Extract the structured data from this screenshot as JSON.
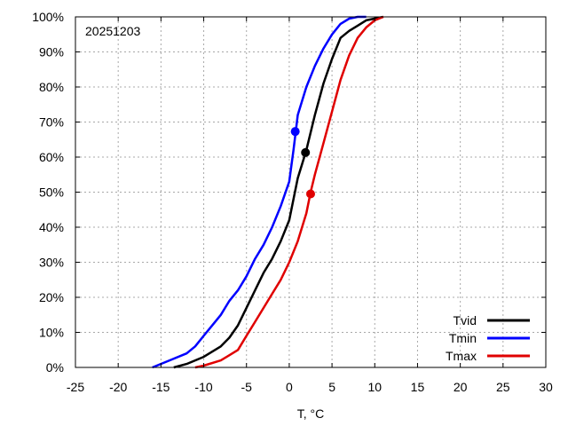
{
  "chart_data": {
    "type": "line",
    "title": "",
    "annotation": "20251203",
    "xlabel": "T, °C",
    "ylabel": "",
    "xlim": [
      -25,
      30
    ],
    "ylim": [
      0,
      100
    ],
    "x_ticks": [
      -25,
      -20,
      -15,
      -10,
      -5,
      0,
      5,
      10,
      15,
      20,
      25,
      30
    ],
    "x_tick_labels": [
      "-25",
      "-20",
      "-15",
      "-10",
      "-5",
      "0",
      "5",
      "10",
      "15",
      "20",
      "25",
      "30"
    ],
    "y_ticks": [
      0,
      10,
      20,
      30,
      40,
      50,
      60,
      70,
      80,
      90,
      100
    ],
    "y_tick_labels": [
      "0%",
      "10%",
      "20%",
      "30%",
      "40%",
      "50%",
      "60%",
      "70%",
      "80%",
      "90%",
      "100%"
    ],
    "grid": true,
    "legend_position": "bottom-right",
    "series": [
      {
        "name": "Tvid",
        "color": "#000000",
        "x": [
          -13.5,
          -12.0,
          -10.0,
          -8.0,
          -7.0,
          -6.0,
          -5.0,
          -4.0,
          -3.0,
          -2.0,
          -1.0,
          0.0,
          0.5,
          1.0,
          1.5,
          2.0,
          3.0,
          4.0,
          5.0,
          6.0,
          7.0,
          8.0,
          9.0,
          11.0
        ],
        "y": [
          0,
          1,
          3,
          6,
          8.5,
          12,
          17,
          22,
          27,
          31,
          36,
          42,
          48,
          54,
          58,
          62,
          72,
          81,
          88,
          94,
          96,
          97.5,
          99,
          100
        ],
        "marker": {
          "x": 1.9,
          "y": 61.3
        }
      },
      {
        "name": "Tmin",
        "color": "#0000ff",
        "x": [
          -16.0,
          -14.0,
          -12.0,
          -11.0,
          -10.0,
          -9.0,
          -8.0,
          -7.0,
          -6.0,
          -5.0,
          -4.0,
          -3.0,
          -2.0,
          -1.0,
          0.0,
          0.5,
          1.0,
          2.0,
          3.0,
          4.0,
          5.0,
          6.0,
          7.0,
          8.0,
          9.0
        ],
        "y": [
          0,
          2,
          4,
          6,
          9,
          12,
          15,
          19,
          22,
          26,
          31,
          35,
          40,
          46,
          53,
          62,
          72,
          80,
          86,
          91,
          95,
          98,
          99.5,
          100,
          100
        ],
        "marker": {
          "x": 0.7,
          "y": 67.3
        }
      },
      {
        "name": "Tmax",
        "color": "#e00000",
        "x": [
          -11.0,
          -10.0,
          -8.0,
          -7.0,
          -6.0,
          -5.0,
          -4.0,
          -3.0,
          -2.0,
          -1.0,
          0.0,
          1.0,
          2.0,
          2.5,
          3.0,
          4.0,
          5.0,
          6.0,
          7.0,
          8.0,
          9.0,
          10.0,
          11.0
        ],
        "y": [
          0,
          0.5,
          2,
          3.5,
          5,
          9,
          13,
          17,
          21,
          25,
          30,
          36,
          44,
          50,
          55,
          64,
          73,
          82,
          89,
          94,
          97,
          99,
          100
        ],
        "marker": {
          "x": 2.5,
          "y": 49.5
        }
      }
    ]
  }
}
